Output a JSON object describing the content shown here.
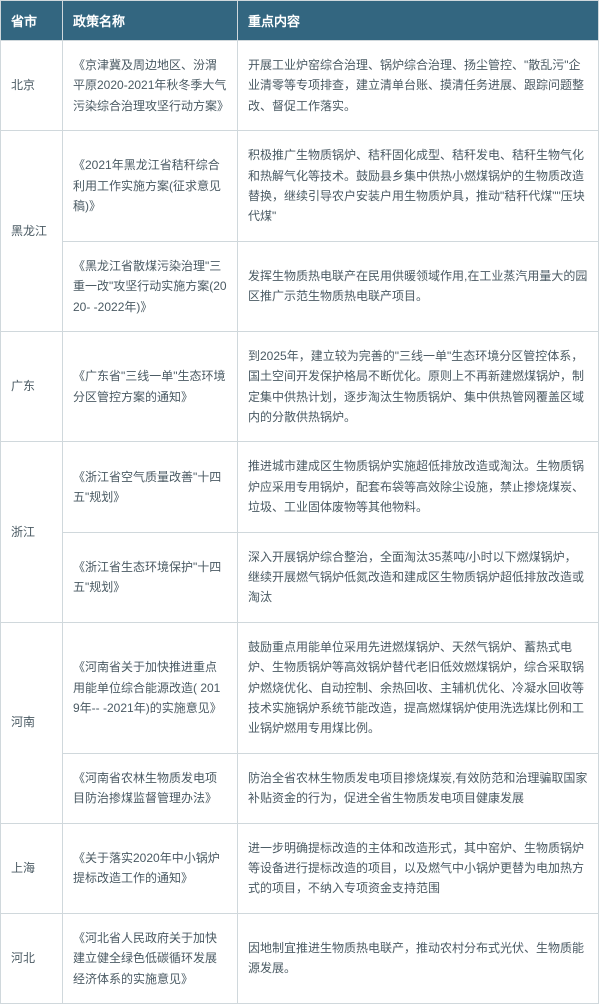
{
  "headers": {
    "province": "省市",
    "policy": "政策名称",
    "content": "重点内容"
  },
  "colors": {
    "header_bg": "#336680",
    "header_fg": "#ffffff",
    "border": "#d0d8dc",
    "text": "#4a5a63"
  },
  "rows": [
    {
      "province": "北京",
      "rowspan": 1,
      "cells": [
        {
          "policy": "《京津冀及周边地区、汾渭平原2020-2021年秋冬季大气污染综合治理攻坚行动方案》",
          "content": "开展工业炉窑综合治理、锅炉综合治理、扬尘管控、\"散乱污\"企业清零等专项排查，建立清单台账、摸清任务进展、跟踪问题整改、督促工作落实。"
        }
      ]
    },
    {
      "province": "黑龙江",
      "rowspan": 2,
      "cells": [
        {
          "policy": "《2021年黑龙江省秸秆综合利用工作实施方案(征求意见稿)》",
          "content": "积极推广生物质锅炉、秸秆固化成型、秸秆发电、秸秆生物气化和热解气化等技术。鼓励县乡集中供热小燃煤锅炉的生物质改造替换，继续引导农户安装户用生物质炉具，推动\"秸秆代煤\"\"压块代煤\""
        },
        {
          "policy": "《黑龙江省散煤污染治理\"三重一改\"攻坚行动实施方案(2020- -2022年)》",
          "content": "发挥生物质热电联产在民用供暖领域作用,在工业蒸汽用量大的园区推广示范生物质热电联产项目。"
        }
      ]
    },
    {
      "province": "广东",
      "rowspan": 1,
      "cells": [
        {
          "policy": "《广东省\"三线一单\"生态环境分区管控方案的通知》",
          "content": "到2025年，建立较为完善的\"三线一单\"生态环境分区管控体系，国土空间开发保护格局不断优化。原则上不再新建燃煤锅炉，制定集中供热计划，逐步淘汰生物质锅炉、集中供热管网覆盖区域内的分散供热锅炉。"
        }
      ]
    },
    {
      "province": "浙江",
      "rowspan": 2,
      "cells": [
        {
          "policy": "《浙江省空气质量改善\"十四五\"规划》",
          "content": "推进城市建成区生物质锅炉实施超低排放改造或淘汰。生物质锅炉应采用专用锅炉，配套布袋等高效除尘设施，禁止掺烧煤炭、垃圾、工业固体废物等其他物料。"
        },
        {
          "policy": "《浙江省生态环境保护\"十四五\"规划》",
          "content": "深入开展锅炉综合整治，全面淘汰35蒸吨/小时以下燃煤锅炉，继续开展燃气锅炉低氮改造和建成区生物质锅炉超低排放改造或淘汰"
        }
      ]
    },
    {
      "province": "河南",
      "rowspan": 2,
      "cells": [
        {
          "policy": "《河南省关于加快推进重点用能单位综合能源改造( 2019年-- -2021年)的实施意见》",
          "content": "鼓励重点用能单位采用先进燃煤锅炉、天然气锅炉、蓄热式电炉、生物质锅炉等高效锅炉替代老旧低效燃煤锅炉，综合采取锅炉燃烧优化、自动控制、余热回收、主辅机优化、冷凝水回收等技术实施锅炉系统节能改造，提高燃煤锅炉使用洗选煤比例和工业锅炉燃用专用煤比例。"
        },
        {
          "policy": "《河南省农林生物质发电项目防治掺煤监督管理办法》",
          "content": "防治全省农林生物质发电项目掺烧煤炭,有效防范和治理骗取国家补贴资金的行为，促进全省生物质发电项目健康发展"
        }
      ]
    },
    {
      "province": "上海",
      "rowspan": 1,
      "cells": [
        {
          "policy": "《关于落实2020年中小锅炉提标改造工作的通知》",
          "content": "进一步明确提标改造的主体和改造形式，其中窑炉、生物质锅炉等设备进行提标改造的项目，以及燃气中小锅炉更替为电加热方式的项目，不纳入专项资金支持范围"
        }
      ]
    },
    {
      "province": "河北",
      "rowspan": 1,
      "cells": [
        {
          "policy": "《河北省人民政府关于加快建立健全绿色低碳循环发展经济体系的实施意见》",
          "content": "因地制宜推进生物质热电联产，推动农村分布式光伏、生物质能源发展。"
        }
      ]
    }
  ]
}
